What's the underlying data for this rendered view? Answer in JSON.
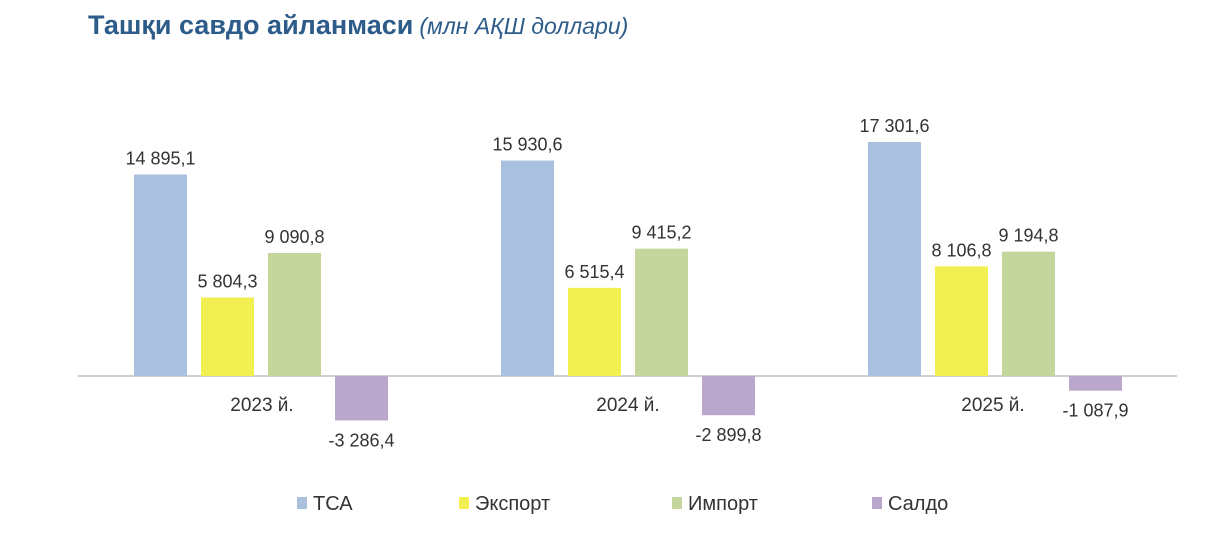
{
  "title": "Ташқи савдо айланмаси",
  "subtitle": "(млн АҚШ доллари)",
  "chart_data": {
    "type": "bar",
    "categories": [
      "2023 й.",
      "2024 й.",
      "2025 й."
    ],
    "series": [
      {
        "name": "ТСА",
        "values": [
          14895.1,
          15930.6,
          17301.6
        ],
        "labels": [
          "14 895,1",
          "15 930,6",
          "17 301,6"
        ],
        "color": "#a9c0df"
      },
      {
        "name": "Экспорт",
        "values": [
          5804.3,
          6515.4,
          8106.8
        ],
        "labels": [
          "5 804,3",
          "6 515,4",
          "8 106,8"
        ],
        "color": "#f2ef52"
      },
      {
        "name": "Импорт",
        "values": [
          9090.8,
          9415.2,
          9194.8
        ],
        "labels": [
          "9 090,8",
          "9 415,2",
          "9 194,8"
        ],
        "color": "#c4d69b"
      },
      {
        "name": "Салдо",
        "values": [
          -3286.4,
          -2899.8,
          -1087.9
        ],
        "labels": [
          "-3 286,4",
          "-2 899,8",
          "-1 087,9"
        ],
        "color": "#b9a7cc"
      }
    ],
    "ylim": [
      -3286.4,
      17301.6
    ],
    "legend_position": "bottom",
    "grid": false
  }
}
